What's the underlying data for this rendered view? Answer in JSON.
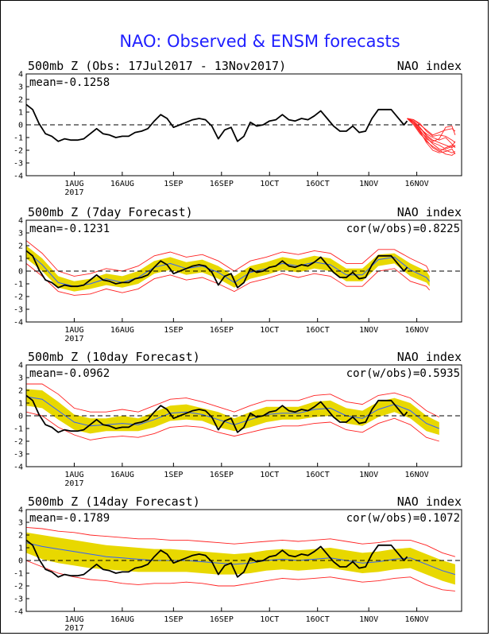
{
  "title": "NAO: Observed & ENSM forecasts",
  "colors": {
    "title": "#1f1fff",
    "observed": "#000000",
    "members": "#ff2020",
    "ensemble_mean": "#3060ff",
    "spread": "#e8d800",
    "background": "#ffffff"
  },
  "chart_data": [
    {
      "type": "line",
      "id": "obs",
      "title_left": "500mb Z (Obs: 17Jul2017 - 13Nov2017)",
      "title_right": "NAO index",
      "stat_left": "mean=-0.1258",
      "stat_right": "",
      "ylim": [
        -4,
        4
      ],
      "yticks": [
        -4,
        -3,
        -2,
        -1,
        0,
        1,
        2,
        3,
        4
      ],
      "xlim": [
        "2017-07-17",
        "2017-11-30"
      ],
      "xticks": [
        {
          "date": "2017-08-01",
          "label": "1AUG"
        },
        {
          "date": "2017-08-16",
          "label": "16AUG"
        },
        {
          "date": "2017-09-01",
          "label": "1SEP"
        },
        {
          "date": "2017-09-16",
          "label": "16SEP"
        },
        {
          "date": "2017-10-01",
          "label": "1OCT"
        },
        {
          "date": "2017-10-16",
          "label": "16OCT"
        },
        {
          "date": "2017-11-01",
          "label": "1NOV"
        },
        {
          "date": "2017-11-16",
          "label": "16NOV"
        }
      ],
      "year_label": "2017",
      "zero_line": "dashed",
      "observed": {
        "dates": [
          "2017-07-17",
          "2017-07-19",
          "2017-07-21",
          "2017-07-23",
          "2017-07-25",
          "2017-07-27",
          "2017-07-29",
          "2017-07-31",
          "2017-08-02",
          "2017-08-04",
          "2017-08-06",
          "2017-08-08",
          "2017-08-10",
          "2017-08-12",
          "2017-08-14",
          "2017-08-16",
          "2017-08-18",
          "2017-08-20",
          "2017-08-22",
          "2017-08-24",
          "2017-08-26",
          "2017-08-28",
          "2017-08-30",
          "2017-09-01",
          "2017-09-03",
          "2017-09-05",
          "2017-09-07",
          "2017-09-09",
          "2017-09-11",
          "2017-09-13",
          "2017-09-15",
          "2017-09-17",
          "2017-09-19",
          "2017-09-21",
          "2017-09-23",
          "2017-09-25",
          "2017-09-27",
          "2017-09-29",
          "2017-10-01",
          "2017-10-03",
          "2017-10-05",
          "2017-10-07",
          "2017-10-09",
          "2017-10-11",
          "2017-10-13",
          "2017-10-15",
          "2017-10-17",
          "2017-10-19",
          "2017-10-21",
          "2017-10-23",
          "2017-10-25",
          "2017-10-27",
          "2017-10-29",
          "2017-10-31",
          "2017-11-02",
          "2017-11-04",
          "2017-11-06",
          "2017-11-08",
          "2017-11-10",
          "2017-11-12",
          "2017-11-13"
        ],
        "values": [
          1.6,
          1.2,
          0.1,
          -0.7,
          -0.9,
          -1.3,
          -1.1,
          -1.2,
          -1.2,
          -1.1,
          -0.7,
          -0.3,
          -0.7,
          -0.8,
          -1.0,
          -0.9,
          -0.9,
          -0.6,
          -0.5,
          -0.3,
          0.3,
          0.8,
          0.5,
          -0.2,
          0.0,
          0.2,
          0.4,
          0.5,
          0.4,
          -0.1,
          -1.1,
          -0.4,
          -0.2,
          -1.3,
          -0.9,
          0.2,
          -0.1,
          0.0,
          0.3,
          0.4,
          0.8,
          0.4,
          0.3,
          0.5,
          0.4,
          0.7,
          1.1,
          0.5,
          -0.1,
          -0.5,
          -0.5,
          -0.1,
          -0.6,
          -0.5,
          0.5,
          1.2,
          1.2,
          1.2,
          0.6,
          0.0,
          0.3
        ]
      },
      "members": {
        "dates": [
          "2017-11-13",
          "2017-11-15",
          "2017-11-17",
          "2017-11-19",
          "2017-11-21",
          "2017-11-23",
          "2017-11-25",
          "2017-11-27",
          "2017-11-28"
        ],
        "series": [
          {
            "values": [
              0.5,
              0.3,
              -0.2,
              -0.8,
              -1.2,
              -1.4,
              -1.6,
              -1.8,
              -1.6
            ]
          },
          {
            "values": [
              0.5,
              0.2,
              -0.5,
              -1.0,
              -1.5,
              -1.9,
              -2.0,
              -2.2,
              -2.1
            ]
          },
          {
            "values": [
              0.5,
              0.4,
              0.0,
              -0.4,
              -0.8,
              -0.6,
              -0.4,
              -0.3,
              -0.5
            ]
          },
          {
            "values": [
              0.5,
              0.1,
              -0.6,
              -1.3,
              -1.7,
              -2.0,
              -2.3,
              -2.4,
              -2.2
            ]
          },
          {
            "values": [
              0.5,
              0.3,
              -0.3,
              -0.7,
              -1.0,
              -1.2,
              -1.0,
              -1.5,
              -1.8
            ]
          },
          {
            "values": [
              0.5,
              0.2,
              -0.4,
              -1.1,
              -1.4,
              -1.6,
              -1.9,
              -1.7,
              -1.3
            ]
          },
          {
            "values": [
              0.5,
              0.4,
              0.1,
              -0.5,
              -0.9,
              -0.8,
              -0.9,
              -1.2,
              -1.4
            ]
          },
          {
            "values": [
              0.5,
              0.0,
              -0.7,
              -1.2,
              -1.8,
              -2.1,
              -1.8,
              -1.6,
              -1.7
            ]
          },
          {
            "values": [
              0.5,
              0.3,
              -0.2,
              -0.9,
              -1.3,
              -1.1,
              -0.2,
              -0.1,
              -0.8
            ]
          },
          {
            "values": [
              0.5,
              0.2,
              -0.5,
              -1.4,
              -2.0,
              -2.2,
              -2.1,
              -1.9,
              -2.3
            ]
          }
        ]
      }
    },
    {
      "type": "line",
      "id": "f7",
      "title_left": "500mb Z (7day Forecast)",
      "title_right": "NAO index",
      "stat_left": "mean=-0.1231",
      "stat_right": "cor(w/obs)=0.8225",
      "ylim": [
        -4,
        4
      ],
      "yticks": [
        -4,
        -3,
        -2,
        -1,
        0,
        1,
        2,
        3,
        4
      ],
      "xlim": [
        "2017-07-17",
        "2017-11-30"
      ],
      "xticks": [
        {
          "date": "2017-08-01",
          "label": "1AUG"
        },
        {
          "date": "2017-08-16",
          "label": "16AUG"
        },
        {
          "date": "2017-09-01",
          "label": "1SEP"
        },
        {
          "date": "2017-09-16",
          "label": "16SEP"
        },
        {
          "date": "2017-10-01",
          "label": "1OCT"
        },
        {
          "date": "2017-10-16",
          "label": "16OCT"
        },
        {
          "date": "2017-11-01",
          "label": "1NOV"
        },
        {
          "date": "2017-11-16",
          "label": "16NOV"
        }
      ],
      "year_label": "2017",
      "zero_line": "dashed",
      "forecast": {
        "dates": [
          "2017-07-17",
          "2017-07-22",
          "2017-07-27",
          "2017-08-01",
          "2017-08-06",
          "2017-08-11",
          "2017-08-16",
          "2017-08-21",
          "2017-08-26",
          "2017-08-31",
          "2017-09-05",
          "2017-09-10",
          "2017-09-15",
          "2017-09-20",
          "2017-09-25",
          "2017-09-30",
          "2017-10-05",
          "2017-10-10",
          "2017-10-15",
          "2017-10-20",
          "2017-10-25",
          "2017-10-30",
          "2017-11-04",
          "2017-11-09",
          "2017-11-14",
          "2017-11-19",
          "2017-11-20"
        ],
        "mean": [
          1.6,
          0.5,
          -0.9,
          -1.2,
          -1.0,
          -0.6,
          -0.9,
          -0.5,
          0.3,
          0.6,
          0.2,
          0.4,
          -0.1,
          -0.9,
          -0.1,
          0.2,
          0.6,
          0.4,
          0.7,
          0.5,
          -0.3,
          -0.3,
          0.9,
          1.1,
          0.1,
          -0.5,
          -0.8
        ],
        "low": [
          1.0,
          0.0,
          -1.3,
          -1.6,
          -1.4,
          -1.1,
          -1.3,
          -1.0,
          -0.2,
          0.1,
          -0.3,
          -0.1,
          -0.6,
          -1.3,
          -0.6,
          -0.3,
          0.1,
          -0.1,
          0.2,
          0.0,
          -0.8,
          -0.8,
          0.4,
          0.6,
          -0.4,
          -0.9,
          -1.2
        ],
        "high": [
          2.0,
          1.0,
          -0.4,
          -0.8,
          -0.6,
          -0.2,
          -0.4,
          0.0,
          0.8,
          1.1,
          0.7,
          0.9,
          0.4,
          -0.4,
          0.4,
          0.7,
          1.1,
          0.9,
          1.2,
          1.0,
          0.2,
          0.2,
          1.3,
          1.4,
          0.6,
          0.0,
          -0.4
        ],
        "min": [
          0.6,
          -0.4,
          -1.6,
          -1.9,
          -1.8,
          -1.4,
          -1.7,
          -1.4,
          -0.6,
          -0.3,
          -0.7,
          -0.5,
          -1.0,
          -1.6,
          -0.9,
          -0.6,
          -0.2,
          -0.5,
          -0.2,
          -0.4,
          -1.2,
          -1.2,
          0.0,
          0.2,
          -0.8,
          -1.2,
          -1.5
        ],
        "max": [
          2.4,
          1.4,
          0.0,
          -0.4,
          -0.2,
          0.2,
          0.0,
          0.4,
          1.2,
          1.5,
          1.1,
          1.3,
          0.8,
          0.0,
          0.8,
          1.1,
          1.5,
          1.3,
          1.6,
          1.4,
          0.6,
          0.6,
          1.7,
          1.7,
          1.0,
          0.4,
          -0.1
        ]
      },
      "observed_ref": "obs"
    },
    {
      "type": "line",
      "id": "f10",
      "title_left": "500mb Z (10day Forecast)",
      "title_right": "NAO index",
      "stat_left": "mean=-0.0962",
      "stat_right": "cor(w/obs)=0.5935",
      "ylim": [
        -4,
        4
      ],
      "yticks": [
        -4,
        -3,
        -2,
        -1,
        0,
        1,
        2,
        3,
        4
      ],
      "xlim": [
        "2017-07-17",
        "2017-11-30"
      ],
      "xticks": [
        {
          "date": "2017-08-01",
          "label": "1AUG"
        },
        {
          "date": "2017-08-16",
          "label": "16AUG"
        },
        {
          "date": "2017-09-01",
          "label": "1SEP"
        },
        {
          "date": "2017-09-16",
          "label": "16SEP"
        },
        {
          "date": "2017-10-01",
          "label": "1OCT"
        },
        {
          "date": "2017-10-16",
          "label": "16OCT"
        },
        {
          "date": "2017-11-01",
          "label": "1NOV"
        },
        {
          "date": "2017-11-16",
          "label": "16NOV"
        }
      ],
      "year_label": "2017",
      "zero_line": "dashed",
      "forecast": {
        "dates": [
          "2017-07-17",
          "2017-07-22",
          "2017-07-27",
          "2017-08-01",
          "2017-08-06",
          "2017-08-11",
          "2017-08-16",
          "2017-08-21",
          "2017-08-26",
          "2017-08-31",
          "2017-09-05",
          "2017-09-10",
          "2017-09-15",
          "2017-09-20",
          "2017-09-25",
          "2017-09-30",
          "2017-10-05",
          "2017-10-10",
          "2017-10-15",
          "2017-10-20",
          "2017-10-25",
          "2017-10-30",
          "2017-11-04",
          "2017-11-09",
          "2017-11-14",
          "2017-11-19",
          "2017-11-23"
        ],
        "mean": [
          1.5,
          1.3,
          0.4,
          -0.5,
          -0.8,
          -0.7,
          -0.6,
          -0.7,
          -0.3,
          0.2,
          0.3,
          0.1,
          -0.3,
          -0.7,
          -0.3,
          0.1,
          0.2,
          0.2,
          0.5,
          0.6,
          0.0,
          -0.2,
          0.5,
          0.9,
          0.4,
          -0.6,
          -1.0
        ],
        "low": [
          0.8,
          0.6,
          -0.3,
          -1.1,
          -1.4,
          -1.2,
          -1.2,
          -1.2,
          -0.9,
          -0.4,
          -0.3,
          -0.4,
          -0.9,
          -1.2,
          -0.9,
          -0.5,
          -0.3,
          -0.3,
          -0.1,
          0.0,
          -0.6,
          -0.8,
          -0.1,
          0.3,
          -0.2,
          -1.2,
          -1.5
        ],
        "high": [
          2.1,
          2.0,
          1.1,
          0.1,
          -0.2,
          -0.2,
          0.0,
          -0.2,
          0.3,
          0.8,
          0.9,
          0.6,
          0.3,
          -0.2,
          0.3,
          0.7,
          0.7,
          0.7,
          1.1,
          1.2,
          0.6,
          0.4,
          1.1,
          1.4,
          1.0,
          0.0,
          -0.5
        ],
        "min": [
          0.3,
          0.0,
          -0.9,
          -1.5,
          -1.9,
          -1.7,
          -1.6,
          -1.7,
          -1.4,
          -0.9,
          -0.8,
          -0.9,
          -1.3,
          -1.6,
          -1.3,
          -1.0,
          -0.8,
          -0.8,
          -0.6,
          -0.5,
          -1.1,
          -1.3,
          -0.6,
          -0.2,
          -0.7,
          -1.7,
          -2.0
        ],
        "max": [
          2.5,
          2.5,
          1.7,
          0.6,
          0.3,
          0.3,
          0.5,
          0.3,
          0.8,
          1.3,
          1.4,
          1.1,
          0.7,
          0.3,
          0.8,
          1.2,
          1.2,
          1.2,
          1.6,
          1.7,
          1.1,
          0.9,
          1.6,
          1.8,
          1.4,
          0.4,
          -0.1
        ]
      },
      "observed_ref": "obs"
    },
    {
      "type": "line",
      "id": "f14",
      "title_left": "500mb Z (14day Forecast)",
      "title_right": "NAO index",
      "stat_left": "mean=-0.1789",
      "stat_right": "cor(w/obs)=0.1072",
      "ylim": [
        -4,
        4
      ],
      "yticks": [
        -4,
        -3,
        -2,
        -1,
        0,
        1,
        2,
        3,
        4
      ],
      "xlim": [
        "2017-07-17",
        "2017-11-30"
      ],
      "xticks": [
        {
          "date": "2017-08-01",
          "label": "1AUG"
        },
        {
          "date": "2017-08-16",
          "label": "16AUG"
        },
        {
          "date": "2017-09-01",
          "label": "1SEP"
        },
        {
          "date": "2017-09-16",
          "label": "16SEP"
        },
        {
          "date": "2017-10-01",
          "label": "1OCT"
        },
        {
          "date": "2017-10-16",
          "label": "16OCT"
        },
        {
          "date": "2017-11-01",
          "label": "1NOV"
        },
        {
          "date": "2017-11-16",
          "label": "16NOV"
        }
      ],
      "year_label": "2017",
      "zero_line": "dashed",
      "forecast": {
        "dates": [
          "2017-07-17",
          "2017-07-22",
          "2017-07-27",
          "2017-08-01",
          "2017-08-06",
          "2017-08-11",
          "2017-08-16",
          "2017-08-21",
          "2017-08-26",
          "2017-08-31",
          "2017-09-05",
          "2017-09-10",
          "2017-09-15",
          "2017-09-20",
          "2017-09-25",
          "2017-09-30",
          "2017-10-05",
          "2017-10-10",
          "2017-10-15",
          "2017-10-20",
          "2017-10-25",
          "2017-10-30",
          "2017-11-04",
          "2017-11-09",
          "2017-11-14",
          "2017-11-19",
          "2017-11-24",
          "2017-11-28"
        ],
        "mean": [
          1.4,
          1.1,
          0.9,
          0.7,
          0.5,
          0.3,
          0.2,
          0.1,
          0.0,
          0.0,
          0.0,
          -0.1,
          -0.2,
          -0.3,
          -0.2,
          0.0,
          0.1,
          0.0,
          0.1,
          0.2,
          0.0,
          -0.2,
          -0.1,
          0.1,
          0.2,
          -0.3,
          -0.8,
          -1.1
        ],
        "low": [
          0.6,
          0.1,
          -0.2,
          -0.4,
          -0.6,
          -0.7,
          -0.8,
          -0.9,
          -0.9,
          -0.9,
          -0.9,
          -1.0,
          -1.1,
          -1.1,
          -1.0,
          -0.8,
          -0.7,
          -0.8,
          -0.7,
          -0.6,
          -0.8,
          -1.0,
          -0.9,
          -0.7,
          -0.6,
          -1.1,
          -1.6,
          -1.9
        ],
        "high": [
          2.2,
          2.0,
          1.8,
          1.6,
          1.4,
          1.2,
          1.1,
          1.0,
          0.9,
          0.9,
          0.8,
          0.7,
          0.6,
          0.5,
          0.6,
          0.8,
          0.9,
          0.8,
          0.9,
          1.0,
          0.8,
          0.6,
          0.7,
          0.9,
          1.0,
          0.5,
          0.0,
          -0.3
        ],
        "min": [
          0.0,
          -0.5,
          -1.0,
          -1.3,
          -1.5,
          -1.6,
          -1.8,
          -1.9,
          -1.8,
          -1.8,
          -1.7,
          -1.8,
          -2.0,
          -2.0,
          -1.8,
          -1.6,
          -1.4,
          -1.5,
          -1.4,
          -1.3,
          -1.5,
          -1.7,
          -1.6,
          -1.4,
          -1.3,
          -1.9,
          -2.3,
          -2.4
        ],
        "max": [
          2.6,
          2.5,
          2.3,
          2.2,
          2.0,
          1.9,
          1.8,
          1.7,
          1.7,
          1.6,
          1.6,
          1.5,
          1.4,
          1.3,
          1.4,
          1.5,
          1.6,
          1.5,
          1.6,
          1.7,
          1.5,
          1.3,
          1.4,
          1.6,
          1.6,
          1.2,
          0.6,
          0.3
        ]
      },
      "observed_ref": "obs"
    }
  ]
}
